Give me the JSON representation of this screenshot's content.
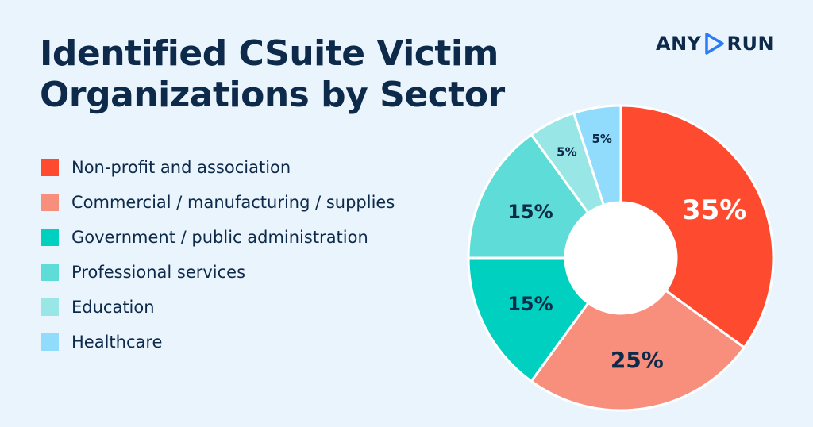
{
  "title_line1": "Identified CSuite Victim",
  "title_line2": "Organizations by Sector",
  "logo": {
    "left": "ANY",
    "right": "RUN",
    "icon": "play-triangle-icon"
  },
  "chart_data": {
    "type": "pie",
    "donut": true,
    "title": "Identified CSuite Victim Organizations by Sector",
    "legend_position": "left",
    "slices": [
      {
        "label": "Non-profit and association",
        "value": 35,
        "display": "35%",
        "color": "#fe4a2f"
      },
      {
        "label": "Commercial / manufacturing / supplies",
        "value": 25,
        "display": "25%",
        "color": "#f88e7c"
      },
      {
        "label": "Government / public administration",
        "value": 15,
        "display": "15%",
        "color": "#00d0bf"
      },
      {
        "label": "Professional services",
        "value": 15,
        "display": "15%",
        "color": "#5edcd8"
      },
      {
        "label": "Education",
        "value": 5,
        "display": "5%",
        "color": "#99e6e6"
      },
      {
        "label": "Healthcare",
        "value": 5,
        "display": "5%",
        "color": "#91dcfc"
      }
    ]
  }
}
